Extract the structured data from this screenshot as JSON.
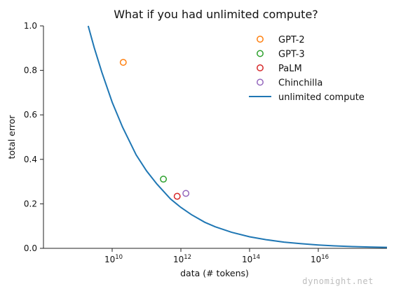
{
  "watermark": "dynomight.net",
  "chart_data": {
    "type": "scatter",
    "title": "What if you had unlimited compute?",
    "xlabel": "data (# tokens)",
    "ylabel": "total error",
    "x_scale": "log",
    "xlim": [
      100000000.0,
      1e+18
    ],
    "ylim": [
      0,
      1.0
    ],
    "x_ticks": [
      {
        "value": 10000000000.0,
        "base": "10",
        "exp": "10"
      },
      {
        "value": 1000000000000.0,
        "base": "10",
        "exp": "12"
      },
      {
        "value": 100000000000000.0,
        "base": "10",
        "exp": "14"
      },
      {
        "value": 1e+16,
        "base": "10",
        "exp": "16"
      }
    ],
    "y_ticks": [
      {
        "value": 0.0,
        "label": "0.0"
      },
      {
        "value": 0.2,
        "label": "0.2"
      },
      {
        "value": 0.4,
        "label": "0.4"
      },
      {
        "value": 0.6,
        "label": "0.6"
      },
      {
        "value": 0.8,
        "label": "0.8"
      },
      {
        "value": 1.0,
        "label": "1.0"
      }
    ],
    "grid": false,
    "legend_position": "top-right",
    "series": [
      {
        "name": "GPT-2",
        "kind": "point",
        "color": "#ff7f0e",
        "x": 21000000000.0,
        "y": 0.836
      },
      {
        "name": "GPT-3",
        "kind": "point",
        "color": "#2ca02c",
        "x": 310000000000.0,
        "y": 0.311
      },
      {
        "name": "PaLM",
        "kind": "point",
        "color": "#d62728",
        "x": 780000000000.0,
        "y": 0.234
      },
      {
        "name": "Chinchilla",
        "kind": "point",
        "color": "#9467bd",
        "x": 1400000000000.0,
        "y": 0.247
      },
      {
        "name": "unlimited compute",
        "kind": "line",
        "color": "#1f77b4",
        "x": [
          2000000000.0,
          3000000000.0,
          5000000000.0,
          10000000000.0,
          20000000000.0,
          50000000000.0,
          100000000000.0,
          200000000000.0,
          500000000000.0,
          1000000000000.0,
          2000000000000.0,
          5000000000000.0,
          10000000000000.0,
          30000000000000.0,
          100000000000000.0,
          300000000000000.0,
          1000000000000000.0,
          3000000000000000.0,
          1e+16,
          3e+16,
          1e+17,
          3e+17,
          1e+18
        ],
        "y": [
          1.0,
          0.902,
          0.792,
          0.657,
          0.545,
          0.42,
          0.348,
          0.289,
          0.222,
          0.184,
          0.152,
          0.117,
          0.097,
          0.072,
          0.052,
          0.039,
          0.028,
          0.021,
          0.015,
          0.011,
          0.008,
          0.006,
          0.0045
        ]
      }
    ]
  }
}
